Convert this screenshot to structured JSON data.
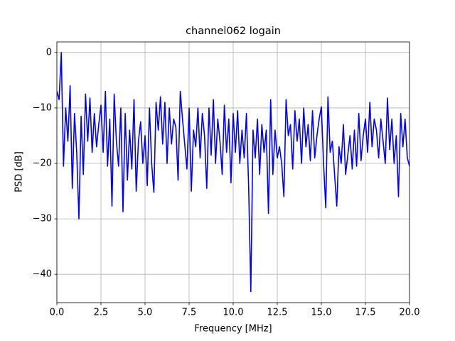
{
  "chart_data": {
    "type": "line",
    "title": "channel062 logain",
    "xlabel": "Frequency [MHz]",
    "ylabel": "PSD [dB]",
    "color": "#0000ff",
    "grid": true,
    "xlim": [
      0,
      20
    ],
    "ylim": [
      -45.1,
      1.9
    ],
    "xticks": [
      {
        "value": 0,
        "label": "0.0"
      },
      2.5,
      {
        "value": 5,
        "label": "5.0"
      },
      7.5,
      {
        "value": 10,
        "label": "10.0"
      },
      12.5,
      {
        "value": 15,
        "label": "15.0"
      },
      17.5,
      {
        "value": 20,
        "label": "20.0"
      }
    ],
    "yticks": [
      {
        "value": 0,
        "label": "0"
      },
      {
        "value": -10,
        "label": "−10"
      },
      {
        "value": -20,
        "label": "−20"
      },
      {
        "value": -30,
        "label": "−30"
      },
      {
        "value": -40,
        "label": "−40"
      }
    ],
    "x": [
      0,
      0.125,
      0.25,
      0.375,
      0.5,
      0.625,
      0.75,
      0.875,
      1,
      1.125,
      1.25,
      1.375,
      1.5,
      1.625,
      1.75,
      1.875,
      2,
      2.125,
      2.25,
      2.375,
      2.5,
      2.625,
      2.75,
      2.875,
      3,
      3.125,
      3.25,
      3.375,
      3.5,
      3.625,
      3.75,
      3.875,
      4,
      4.125,
      4.25,
      4.375,
      4.5,
      4.625,
      4.75,
      4.875,
      5,
      5.125,
      5.25,
      5.375,
      5.5,
      5.625,
      5.75,
      5.875,
      6,
      6.125,
      6.25,
      6.375,
      6.5,
      6.625,
      6.75,
      6.875,
      7,
      7.125,
      7.25,
      7.375,
      7.5,
      7.625,
      7.75,
      7.875,
      8,
      8.125,
      8.25,
      8.375,
      8.5,
      8.625,
      8.75,
      8.875,
      9,
      9.125,
      9.25,
      9.375,
      9.5,
      9.625,
      9.75,
      9.875,
      10,
      10.125,
      10.25,
      10.375,
      10.5,
      10.625,
      10.75,
      10.875,
      11,
      11.125,
      11.25,
      11.375,
      11.5,
      11.625,
      11.75,
      11.875,
      12,
      12.125,
      12.25,
      12.375,
      12.5,
      12.625,
      12.75,
      12.875,
      13,
      13.125,
      13.25,
      13.375,
      13.5,
      13.625,
      13.75,
      13.875,
      14,
      14.125,
      14.25,
      14.375,
      14.5,
      14.625,
      14.75,
      14.875,
      15,
      15.125,
      15.25,
      15.375,
      15.5,
      15.625,
      15.75,
      15.875,
      16,
      16.125,
      16.25,
      16.375,
      16.5,
      16.625,
      16.75,
      16.875,
      17,
      17.125,
      17.25,
      17.375,
      17.5,
      17.625,
      17.75,
      17.875,
      18,
      18.125,
      18.25,
      18.375,
      18.5,
      18.625,
      18.75,
      18.875,
      19,
      19.125,
      19.25,
      19.375,
      19.5,
      19.625,
      19.75,
      19.875,
      20
    ],
    "values": [
      -7,
      -8.5,
      0,
      -20.5,
      -10,
      -16,
      -6,
      -24.5,
      -11,
      -18,
      -30,
      -11.5,
      -22,
      -7.5,
      -16,
      -8.2,
      -18,
      -11,
      -17,
      -13,
      -9.5,
      -18,
      -7,
      -20.5,
      -12,
      -27.7,
      -7.5,
      -16,
      -20.5,
      -10,
      -28.7,
      -11,
      -23,
      -14,
      -21,
      -8.5,
      -25,
      -16,
      -12.5,
      -20,
      -15,
      -24,
      -10,
      -20,
      -25.2,
      -9,
      -14,
      -8,
      -16.5,
      -9,
      -20,
      -10,
      -16.5,
      -12,
      -13.5,
      -23,
      -7,
      -12,
      -16.5,
      -21,
      -10,
      -25,
      -14,
      -17,
      -10,
      -19,
      -11,
      -15,
      -24.5,
      -10,
      -18.5,
      -8.5,
      -20,
      -12,
      -16,
      -22,
      -9.5,
      -18,
      -12,
      -23.5,
      -11,
      -18,
      -10.5,
      -20,
      -14,
      -19,
      -11,
      -24,
      -43.1,
      -14,
      -19,
      -12,
      -22,
      -13,
      -18,
      -14,
      -29,
      -8.5,
      -22,
      -14,
      -19,
      -17,
      -20,
      -26,
      -8.5,
      -15,
      -13,
      -21,
      -10.5,
      -16,
      -12,
      -20,
      -10,
      -17,
      -13,
      -19.5,
      -10.5,
      -19,
      -15,
      -12,
      -9.8,
      -20,
      -28,
      -8,
      -18,
      -16,
      -22,
      -27.7,
      -17,
      -20,
      -13,
      -22,
      -18.5,
      -15,
      -21,
      -14,
      -20.5,
      -11,
      -19.5,
      -15,
      -12,
      -18,
      -9,
      -17,
      -12,
      -14,
      -19,
      -12,
      -16,
      -20,
      -8.2,
      -17.5,
      -12,
      -20,
      -15,
      -26,
      -11,
      -17,
      -12,
      -19,
      -20.5
    ]
  }
}
